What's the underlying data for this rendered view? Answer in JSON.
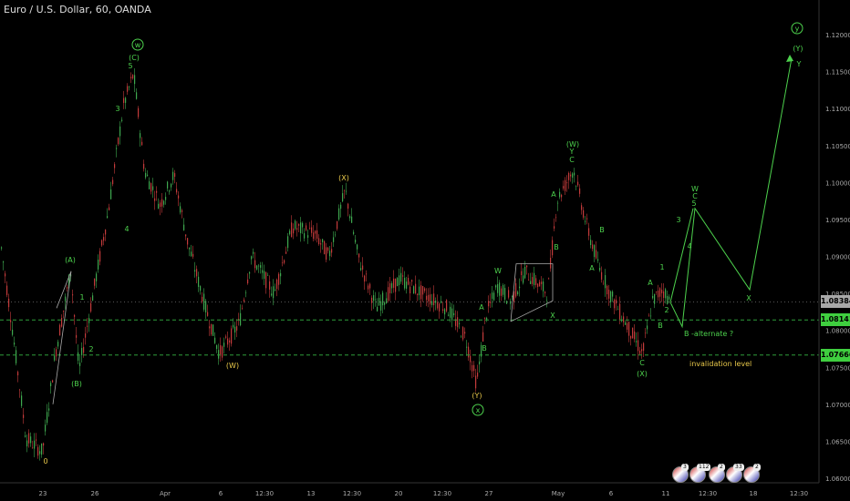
{
  "header": {
    "title": "Euro / U.S. Dollar, 60, OANDA"
  },
  "colors": {
    "bull": "#3fa84f",
    "bear": "#c43b3b",
    "wave_green": "#4dd24d",
    "wave_yellow": "#e8c84a",
    "level_line": "#2e9e3a"
  },
  "price_axis": {
    "ticks": [
      "1.06000",
      "1.06500",
      "1.07000",
      "1.07500",
      "1.08000",
      "1.08500",
      "1.09000",
      "1.09500",
      "1.10000",
      "1.10500",
      "1.11000",
      "1.11500",
      "1.12000"
    ],
    "tags": [
      {
        "label": "1.08384",
        "color": "#a8a8a8",
        "value": 1.08384
      },
      {
        "label": "1.08141",
        "color": "#3fcf3f",
        "value": 1.08141
      },
      {
        "label": "1.07666",
        "color": "#3fcf3f",
        "value": 1.07666
      }
    ]
  },
  "time_axis": {
    "ticks": [
      "23",
      "26",
      "Apr",
      "6",
      "12:30",
      "13",
      "12:30",
      "20",
      "12:30",
      "27",
      "May",
      "6",
      "11",
      "12:30",
      "18",
      "12:30"
    ]
  },
  "annotations": {
    "invalidation": "invalidation level",
    "alternate": "B -alternate ?"
  },
  "wave_labels": [
    {
      "text": "w",
      "circled": true,
      "color": "green"
    },
    {
      "text": "(C)",
      "color": "green"
    },
    {
      "text": "5",
      "color": "green"
    },
    {
      "text": "3",
      "color": "green"
    },
    {
      "text": "4",
      "color": "green"
    },
    {
      "text": "(A)",
      "color": "green"
    },
    {
      "text": "1",
      "color": "green"
    },
    {
      "text": "2",
      "color": "green"
    },
    {
      "text": "(B)",
      "color": "green"
    },
    {
      "text": "0",
      "color": "yellow"
    },
    {
      "text": "(W)",
      "color": "yellow"
    },
    {
      "text": "(X)",
      "color": "yellow"
    },
    {
      "text": "(Y)",
      "color": "yellow"
    },
    {
      "text": "x",
      "circled": true,
      "color": "green"
    },
    {
      "text": "A",
      "color": "green"
    },
    {
      "text": "B",
      "color": "green"
    },
    {
      "text": "W",
      "color": "green"
    },
    {
      "text": "X",
      "color": "green"
    },
    {
      "text": "(W)",
      "color": "green"
    },
    {
      "text": "Y",
      "color": "green"
    },
    {
      "text": "C",
      "color": "green"
    },
    {
      "text": "A",
      "color": "green"
    },
    {
      "text": "B",
      "color": "green"
    },
    {
      "text": "B",
      "color": "green"
    },
    {
      "text": "A",
      "color": "green"
    },
    {
      "text": "1",
      "color": "green"
    },
    {
      "text": "A",
      "color": "green"
    },
    {
      "text": "2",
      "color": "green"
    },
    {
      "text": "B",
      "color": "green"
    },
    {
      "text": "C",
      "color": "green"
    },
    {
      "text": "(X)",
      "color": "green"
    },
    {
      "text": "3",
      "color": "green"
    },
    {
      "text": "4",
      "color": "green"
    },
    {
      "text": "W",
      "color": "green"
    },
    {
      "text": "C",
      "color": "green"
    },
    {
      "text": "5",
      "color": "green"
    },
    {
      "text": "X",
      "color": "green"
    },
    {
      "text": "Y",
      "color": "green"
    },
    {
      "text": "(Y)",
      "color": "green"
    },
    {
      "text": "y",
      "circled": true,
      "color": "green"
    }
  ],
  "events": {
    "counts": [
      "3",
      "112",
      "2",
      "33",
      "2"
    ]
  },
  "chart_data": {
    "type": "line",
    "title": "Euro / U.S. Dollar, 60, OANDA",
    "ylim": [
      1.06,
      1.122
    ],
    "key_points": [
      {
        "label": "0",
        "value": 1.0636
      },
      {
        "label": "(A)",
        "value": 1.088
      },
      {
        "label": "(B)",
        "value": 1.0745
      },
      {
        "label": "w (C) 5",
        "value": 1.1147
      },
      {
        "label": "(W)",
        "value": 1.0768
      },
      {
        "label": "(X)",
        "value": 1.099
      },
      {
        "label": "(Y) x",
        "value": 1.0727
      },
      {
        "label": "(W) Y C",
        "value": 1.1018
      },
      {
        "label": "C (X)",
        "value": 1.0768
      }
    ],
    "projection": [
      {
        "label": "B",
        "value": 1.0805
      },
      {
        "label": "W C 5",
        "value": 1.0965
      },
      {
        "label": "X",
        "value": 1.0855
      },
      {
        "label": "y (Y) Y",
        "value": 1.1168
      }
    ],
    "levels": [
      {
        "name": "1.08141",
        "value": 1.08141
      },
      {
        "name": "invalidation level",
        "value": 1.07666
      }
    ],
    "last_price": 1.08384
  }
}
